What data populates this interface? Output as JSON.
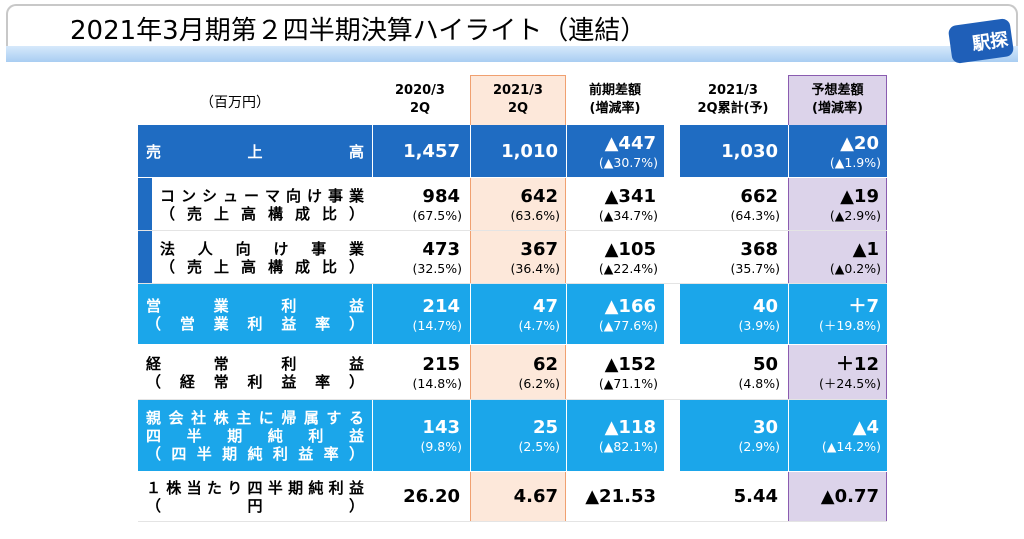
{
  "header": {
    "title": "2021年3月期第２四半期決算ハイライト（連結）",
    "logo": "駅探"
  },
  "table": {
    "unit": "（百万円）",
    "columns": [
      [
        "2020/3",
        "2Q"
      ],
      [
        "2021/3",
        "2Q"
      ],
      [
        "前期差額",
        "(増減率)"
      ],
      [
        "2021/3",
        "2Q累計(予)"
      ],
      [
        "予想差額",
        "(増減率)"
      ]
    ],
    "rows": [
      {
        "label": [
          "売上高"
        ],
        "cells": [
          [
            "1,457"
          ],
          [
            "1,010"
          ],
          [
            "▲447",
            "(▲30.7%)"
          ],
          [
            "1,030"
          ],
          [
            "▲20",
            "(▲1.9%)"
          ]
        ]
      },
      {
        "label": [
          "コンシューマ向け事業",
          "（売上高構成比）"
        ],
        "cells": [
          [
            "984",
            "(67.5%)"
          ],
          [
            "642",
            "(63.6%)"
          ],
          [
            "▲341",
            "(▲34.7%)"
          ],
          [
            "662",
            "(64.3%)"
          ],
          [
            "▲19",
            "(▲2.9%)"
          ]
        ]
      },
      {
        "label": [
          "法人向け事業",
          "（売上高構成比）"
        ],
        "cells": [
          [
            "473",
            "(32.5%)"
          ],
          [
            "367",
            "(36.4%)"
          ],
          [
            "▲105",
            "(▲22.4%)"
          ],
          [
            "368",
            "(35.7%)"
          ],
          [
            "▲1",
            "(▲0.2%)"
          ]
        ]
      },
      {
        "label": [
          "営業利益",
          "（営業利益率）"
        ],
        "cells": [
          [
            "214",
            "(14.7%)"
          ],
          [
            "47",
            "(4.7%)"
          ],
          [
            "▲166",
            "(▲77.6%)"
          ],
          [
            "40",
            "(3.9%)"
          ],
          [
            "＋7",
            "(＋19.8%)"
          ]
        ]
      },
      {
        "label": [
          "経常利益",
          "（経常利益率）"
        ],
        "cells": [
          [
            "215",
            "(14.8%)"
          ],
          [
            "62",
            "(6.2%)"
          ],
          [
            "▲152",
            "(▲71.1%)"
          ],
          [
            "50",
            "(4.8%)"
          ],
          [
            "＋12",
            "(＋24.5%)"
          ]
        ]
      },
      {
        "label": [
          "親会社株主に帰属する",
          "四半期純利益",
          "（四半期純利益率）"
        ],
        "cells": [
          [
            "143",
            "(9.8%)"
          ],
          [
            "25",
            "(2.5%)"
          ],
          [
            "▲118",
            "(▲82.1%)"
          ],
          [
            "30",
            "(2.9%)"
          ],
          [
            "▲4",
            "(▲14.2%)"
          ]
        ]
      },
      {
        "label": [
          "１株当たり四半期純利益",
          "（円）"
        ],
        "cells": [
          [
            "26.20"
          ],
          [
            "4.67"
          ],
          [
            "▲21.53"
          ],
          [
            "5.44"
          ],
          [
            "▲0.77"
          ]
        ]
      }
    ]
  }
}
